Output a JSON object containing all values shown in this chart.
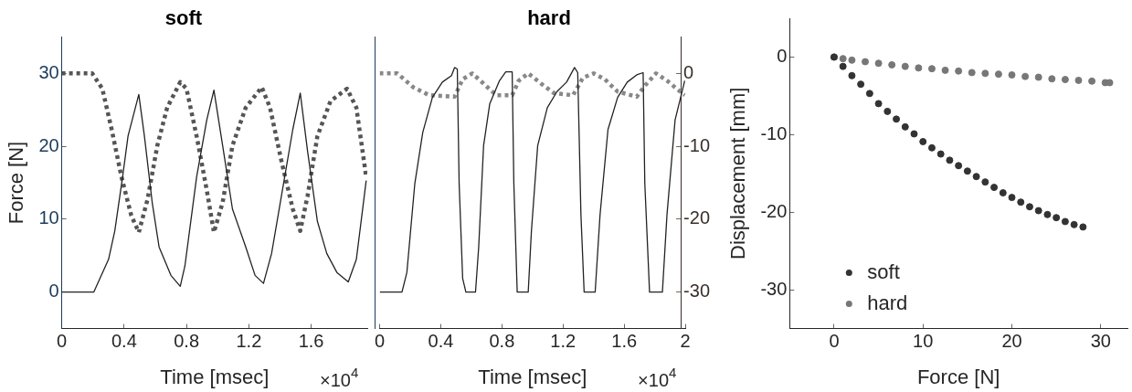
{
  "chart_data": [
    {
      "type": "line",
      "title": "soft",
      "xlabel": "Time [msec]",
      "ylabel": "Force [N]",
      "xlim": [
        0,
        1.96
      ],
      "xticks": [
        0,
        0.4,
        0.8,
        1.2,
        1.6
      ],
      "ylim": [
        -5,
        35
      ],
      "yticks": [
        0,
        10,
        20,
        30
      ],
      "y2lim": [
        -35,
        5
      ],
      "tick_labels": "xy",
      "grid": false,
      "legend": false,
      "annotations": [
        "×10$^{4}$"
      ],
      "series": [
        {
          "color": "#222222",
          "line_style": "solid",
          "marker": "none",
          "x": [
            0,
            0.205,
            0.3,
            0.34,
            0.39,
            0.425,
            0.494,
            0.53,
            0.58,
            0.624,
            0.7,
            0.76,
            0.79,
            0.865,
            0.93,
            0.976,
            1.032,
            1.095,
            1.18,
            1.24,
            1.294,
            1.346,
            1.43,
            1.482,
            1.53,
            1.577,
            1.64,
            1.7,
            1.765,
            1.838,
            1.89,
            1.953
          ],
          "values": [
            0,
            0,
            4.5,
            8.4,
            15.8,
            21.4,
            27.1,
            21.4,
            12.3,
            6.2,
            2.3,
            0.8,
            3.6,
            15.8,
            23.6,
            27.7,
            20.1,
            11.4,
            6.2,
            2.3,
            1.2,
            5.3,
            15.8,
            22.3,
            27.3,
            19.3,
            9.7,
            5.3,
            2.7,
            1.4,
            4.5,
            15.3
          ]
        },
        {
          "color": "#555555",
          "line_style": "dotted",
          "marker": "none",
          "axis": "y2",
          "x": [
            0,
            0.195,
            0.26,
            0.32,
            0.383,
            0.446,
            0.494,
            0.55,
            0.613,
            0.676,
            0.76,
            0.8,
            0.865,
            0.93,
            0.976,
            1.032,
            1.095,
            1.18,
            1.283,
            1.336,
            1.41,
            1.482,
            1.53,
            1.577,
            1.64,
            1.724,
            1.83,
            1.89,
            1.953
          ],
          "values": [
            0,
            0,
            -2.1,
            -7.7,
            -14.2,
            -19.5,
            -21.8,
            -17.3,
            -9.9,
            -4.7,
            -1.2,
            -2.1,
            -8.6,
            -16,
            -21.8,
            -17.7,
            -9.9,
            -4.7,
            -1.9,
            -4.7,
            -12.1,
            -18.6,
            -21.6,
            -16.8,
            -8.6,
            -3.8,
            -2.1,
            -4.7,
            -14.2
          ]
        }
      ]
    },
    {
      "type": "line",
      "title": "hard",
      "xlabel": "Time [msec]",
      "xlim": [
        0,
        2
      ],
      "xticks": [
        0,
        0.4,
        0.8,
        1.2,
        1.6,
        2
      ],
      "ylim": [
        -5,
        35
      ],
      "y2lim": [
        -35,
        5
      ],
      "y2ticks": [
        -30,
        -20,
        -10,
        0
      ],
      "tick_labels": "xy2",
      "grid": false,
      "legend": false,
      "annotations": [
        "×10$^{4}$"
      ],
      "series": [
        {
          "color": "#222222",
          "line_style": "solid",
          "marker": "none",
          "x": [
            0,
            0.146,
            0.178,
            0.23,
            0.282,
            0.345,
            0.41,
            0.47,
            0.49,
            0.508,
            0.52,
            0.543,
            0.564,
            0.627,
            0.648,
            0.68,
            0.72,
            0.784,
            0.825,
            0.867,
            0.878,
            0.9,
            0.972,
            0.993,
            1.034,
            1.097,
            1.16,
            1.223,
            1.275,
            1.296,
            1.317,
            1.338,
            1.41,
            1.442,
            1.494,
            1.557,
            1.62,
            1.682,
            1.724,
            1.735,
            1.766,
            1.85,
            1.88,
            1.933,
            1.996
          ],
          "values": [
            0,
            0,
            2.7,
            14.9,
            21.9,
            26.7,
            28.8,
            29.7,
            30.8,
            30.6,
            14.9,
            1.9,
            0,
            0,
            6.2,
            20.1,
            25.8,
            29,
            30.2,
            30.2,
            14.9,
            0,
            0,
            8.4,
            20.1,
            25.3,
            27.5,
            28.8,
            30.8,
            30.1,
            10.6,
            0,
            0,
            10.6,
            22.3,
            26.7,
            28.8,
            29.8,
            30.1,
            14.9,
            0,
            0,
            10.6,
            23.6,
            29
          ]
        },
        {
          "color": "#888888",
          "line_style": "dotted",
          "marker": "none",
          "axis": "y2",
          "x": [
            0,
            0.115,
            0.22,
            0.324,
            0.49,
            0.543,
            0.606,
            0.68,
            0.763,
            0.867,
            0.91,
            0.972,
            1.056,
            1.14,
            1.265,
            1.33,
            1.4,
            1.473,
            1.557,
            1.682,
            1.735,
            1.808,
            1.88,
            1.996
          ],
          "values": [
            0,
            0,
            -1.9,
            -3,
            -3.2,
            -0.8,
            0,
            -1.4,
            -3,
            -3,
            -1,
            0,
            -1.4,
            -2.7,
            -3,
            -0.6,
            0,
            -0.8,
            -2.5,
            -3.2,
            -1.7,
            0,
            -1,
            -3
          ]
        }
      ]
    },
    {
      "type": "scatter",
      "xlabel": "Force [N]",
      "ylabel": "Displacement [mm]",
      "xlim": [
        -5,
        33
      ],
      "xticks": [
        0,
        10,
        20,
        30
      ],
      "ylim": [
        -35,
        5
      ],
      "yticks": [
        -30,
        -20,
        -10,
        0
      ],
      "grid": false,
      "legend": "bottom left",
      "marker": "circle",
      "series": [
        {
          "name": "soft",
          "color": "#333333",
          "x": [
            0,
            1,
            2,
            3,
            4,
            5,
            6,
            7,
            8,
            9,
            10,
            11,
            12,
            13,
            14,
            15,
            16,
            17,
            18,
            19,
            20,
            21,
            22,
            23,
            24,
            25,
            26,
            27,
            28
          ],
          "values": [
            0,
            -1.2,
            -2.4,
            -3.5,
            -4.7,
            -6,
            -7,
            -8,
            -9,
            -9.9,
            -10.9,
            -11.7,
            -12.5,
            -13.3,
            -14,
            -14.7,
            -15.4,
            -16.1,
            -16.8,
            -17.5,
            -18.1,
            -18.7,
            -19.3,
            -19.8,
            -20.3,
            -20.7,
            -21.2,
            -21.6,
            -21.9
          ]
        },
        {
          "name": "hard",
          "color": "#777777",
          "x": [
            0,
            1,
            2,
            3.5,
            5,
            6.5,
            8,
            9.5,
            11,
            12.5,
            14,
            15.5,
            17,
            18.5,
            20,
            21.5,
            23,
            24.5,
            26,
            27.5,
            29,
            30.5,
            31
          ],
          "values": [
            0,
            -0.2,
            -0.4,
            -0.6,
            -0.8,
            -1,
            -1.2,
            -1.4,
            -1.5,
            -1.7,
            -1.8,
            -2,
            -2.1,
            -2.2,
            -2.3,
            -2.5,
            -2.6,
            -2.8,
            -2.9,
            -3,
            -3.1,
            -3.3,
            -3.3
          ]
        }
      ]
    }
  ]
}
